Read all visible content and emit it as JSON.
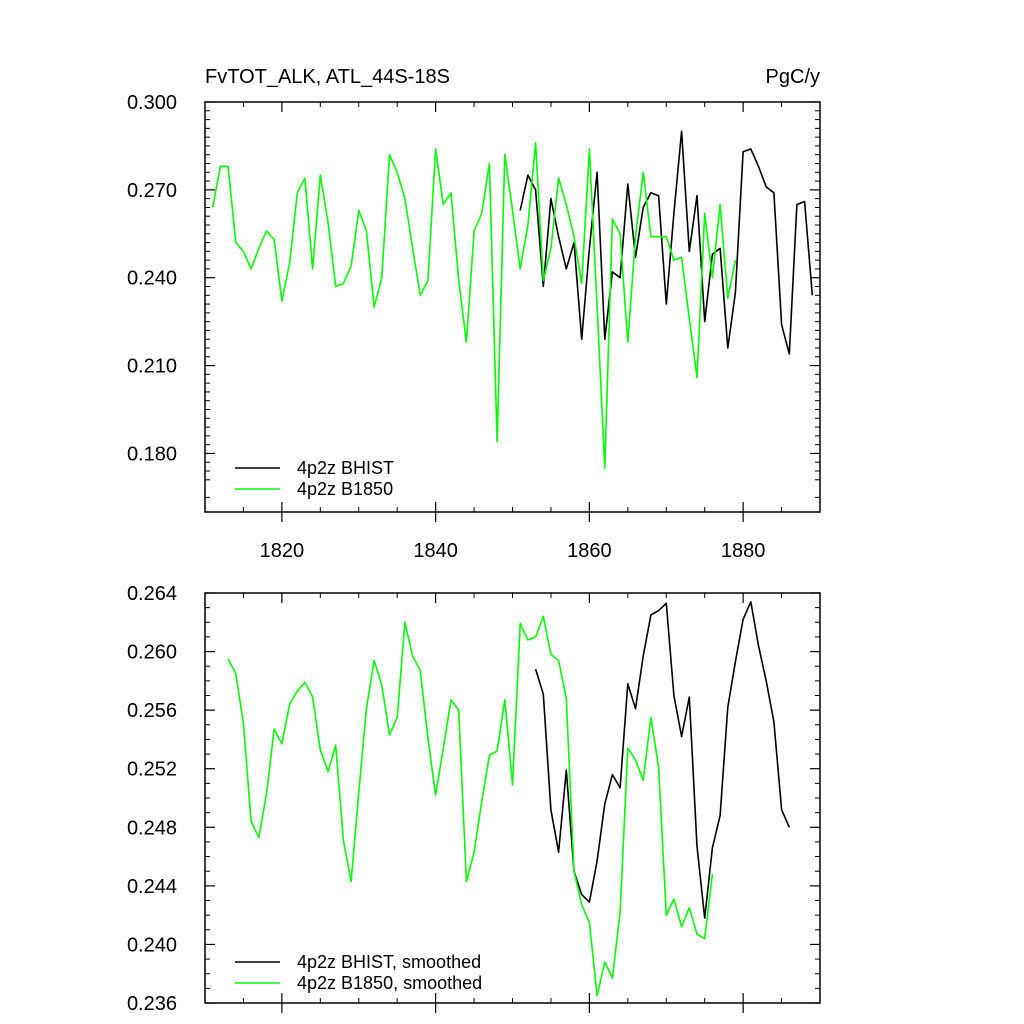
{
  "chart_data": [
    {
      "type": "line",
      "title": "FvTOT_ALK, ATL_44S-18S",
      "units": "PgC/y",
      "xlim": [
        1810,
        1890
      ],
      "ylim": [
        0.16,
        0.3
      ],
      "yticks": [
        0.18,
        0.21,
        0.24,
        0.27,
        0.3
      ],
      "ytick_labels": [
        "0.180",
        "0.210",
        "0.240",
        "0.270",
        "0.300"
      ],
      "xticks": [
        1820,
        1840,
        1860,
        1880
      ],
      "xtick_labels": [
        "1820",
        "1840",
        "1860",
        "1880"
      ],
      "legend_position": "bottom-left",
      "series": [
        {
          "name": "4p2z BHIST",
          "color": "#000000",
          "x": [
            1851,
            1852,
            1853,
            1854,
            1855,
            1856,
            1857,
            1858,
            1859,
            1860,
            1861,
            1862,
            1863,
            1864,
            1865,
            1866,
            1867,
            1868,
            1869,
            1870,
            1871,
            1872,
            1873,
            1874,
            1875,
            1876,
            1877,
            1878,
            1879,
            1880,
            1881,
            1882,
            1883,
            1884,
            1885,
            1886,
            1887,
            1888,
            1889
          ],
          "y": [
            0.263,
            0.275,
            0.27,
            0.237,
            0.267,
            0.254,
            0.243,
            0.252,
            0.219,
            0.25,
            0.276,
            0.219,
            0.242,
            0.24,
            0.272,
            0.247,
            0.264,
            0.269,
            0.268,
            0.231,
            0.262,
            0.29,
            0.249,
            0.268,
            0.225,
            0.248,
            0.25,
            0.216,
            0.235,
            0.283,
            0.284,
            0.278,
            0.271,
            0.269,
            0.224,
            0.214,
            0.265,
            0.266,
            0.234
          ]
        },
        {
          "name": "4p2z B1850",
          "color": "#00ff00",
          "x": [
            1811,
            1812,
            1813,
            1814,
            1815,
            1816,
            1817,
            1818,
            1819,
            1820,
            1821,
            1822,
            1823,
            1824,
            1825,
            1826,
            1827,
            1828,
            1829,
            1830,
            1831,
            1832,
            1833,
            1834,
            1835,
            1836,
            1837,
            1838,
            1839,
            1840,
            1841,
            1842,
            1843,
            1844,
            1845,
            1846,
            1847,
            1848,
            1849,
            1850,
            1851,
            1852,
            1853,
            1854,
            1855,
            1856,
            1857,
            1858,
            1859,
            1860,
            1861,
            1862,
            1863,
            1864,
            1865,
            1866,
            1867,
            1868,
            1869,
            1870,
            1871,
            1872,
            1873,
            1874,
            1875,
            1876,
            1877,
            1878,
            1879
          ],
          "y": [
            0.264,
            0.278,
            0.278,
            0.252,
            0.249,
            0.243,
            0.25,
            0.256,
            0.253,
            0.232,
            0.245,
            0.269,
            0.274,
            0.243,
            0.275,
            0.259,
            0.237,
            0.238,
            0.244,
            0.263,
            0.256,
            0.23,
            0.24,
            0.282,
            0.276,
            0.267,
            0.25,
            0.234,
            0.239,
            0.284,
            0.265,
            0.269,
            0.239,
            0.218,
            0.256,
            0.262,
            0.279,
            0.184,
            0.282,
            0.263,
            0.243,
            0.258,
            0.286,
            0.239,
            0.25,
            0.274,
            0.265,
            0.254,
            0.238,
            0.284,
            0.23,
            0.175,
            0.26,
            0.255,
            0.218,
            0.254,
            0.276,
            0.254,
            0.254,
            0.254,
            0.246,
            0.247,
            0.226,
            0.206,
            0.262,
            0.24,
            0.265,
            0.233,
            0.246
          ]
        }
      ]
    },
    {
      "type": "line",
      "title": "",
      "xlim": [
        1810,
        1890
      ],
      "ylim": [
        0.236,
        0.264
      ],
      "yticks": [
        0.236,
        0.24,
        0.244,
        0.248,
        0.252,
        0.256,
        0.26,
        0.264
      ],
      "ytick_labels": [
        "0.236",
        "0.240",
        "0.244",
        "0.248",
        "0.252",
        "0.256",
        "0.260",
        "0.264"
      ],
      "xticks": [
        1820,
        1840,
        1860,
        1880
      ],
      "legend_position": "bottom-left",
      "series": [
        {
          "name": "4p2z BHIST, smoothed",
          "color": "#000000",
          "x": [
            1853,
            1854,
            1855,
            1856,
            1857,
            1858,
            1859,
            1860,
            1861,
            1862,
            1863,
            1864,
            1865,
            1866,
            1867,
            1868,
            1869,
            1870,
            1871,
            1872,
            1873,
            1874,
            1875,
            1876,
            1877,
            1878,
            1879,
            1880,
            1881,
            1882,
            1883,
            1884,
            1885,
            1886
          ],
          "y": [
            0.2588,
            0.2571,
            0.2492,
            0.2463,
            0.2519,
            0.245,
            0.2434,
            0.2429,
            0.2457,
            0.2496,
            0.2516,
            0.2507,
            0.2578,
            0.2561,
            0.2597,
            0.2625,
            0.2628,
            0.2633,
            0.257,
            0.2542,
            0.2569,
            0.2467,
            0.2418,
            0.2466,
            0.2488,
            0.2562,
            0.2593,
            0.2622,
            0.2634,
            0.2604,
            0.258,
            0.2552,
            0.2492,
            0.248
          ]
        },
        {
          "name": "4p2z B1850, smoothed",
          "color": "#00ff00",
          "x": [
            1813,
            1814,
            1815,
            1816,
            1817,
            1818,
            1819,
            1820,
            1821,
            1822,
            1823,
            1824,
            1825,
            1826,
            1827,
            1828,
            1829,
            1830,
            1831,
            1832,
            1833,
            1834,
            1835,
            1836,
            1837,
            1838,
            1839,
            1840,
            1841,
            1842,
            1843,
            1844,
            1845,
            1846,
            1847,
            1848,
            1849,
            1850,
            1851,
            1852,
            1853,
            1854,
            1855,
            1856,
            1857,
            1858,
            1859,
            1860,
            1861,
            1862,
            1863,
            1864,
            1865,
            1866,
            1867,
            1868,
            1869,
            1870,
            1871,
            1872,
            1873,
            1874,
            1875,
            1876
          ],
          "y": [
            0.2595,
            0.2585,
            0.2551,
            0.2484,
            0.2473,
            0.2503,
            0.2547,
            0.2537,
            0.2564,
            0.2573,
            0.2579,
            0.2569,
            0.2533,
            0.2518,
            0.2536,
            0.2471,
            0.2443,
            0.2504,
            0.2561,
            0.2594,
            0.2577,
            0.2543,
            0.2555,
            0.262,
            0.2597,
            0.2587,
            0.2541,
            0.2502,
            0.2534,
            0.2567,
            0.256,
            0.2443,
            0.2463,
            0.2498,
            0.2529,
            0.2532,
            0.2567,
            0.2509,
            0.2619,
            0.2608,
            0.261,
            0.2624,
            0.2598,
            0.2594,
            0.2568,
            0.245,
            0.2427,
            0.2415,
            0.2365,
            0.2388,
            0.2377,
            0.2422,
            0.2534,
            0.2526,
            0.2512,
            0.2555,
            0.2521,
            0.242,
            0.2431,
            0.2412,
            0.2425,
            0.2407,
            0.2404,
            0.2448
          ]
        }
      ]
    }
  ]
}
